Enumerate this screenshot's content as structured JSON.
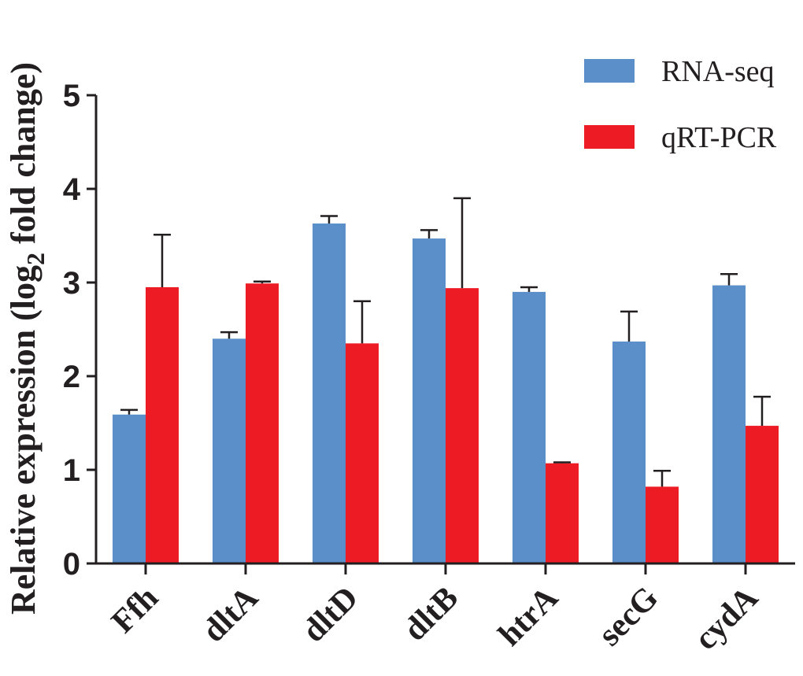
{
  "chart_data": {
    "type": "bar",
    "title": "",
    "xlabel": "",
    "ylabel": {
      "prefix": "Relative expression (log",
      "subscript": "2",
      "suffix": " fold change)"
    },
    "ylim": [
      0,
      5
    ],
    "yticks": [
      "0",
      "1",
      "2",
      "3",
      "4",
      "5"
    ],
    "categories": [
      "Ffh",
      "dltA",
      "dltD",
      "dltB",
      "htrA",
      "secG",
      "cydA"
    ],
    "series": [
      {
        "name": "RNA-seq",
        "color": "#5b8fc9",
        "values": [
          1.59,
          2.4,
          3.63,
          3.47,
          2.9,
          2.37,
          2.97
        ],
        "errors": [
          0.05,
          0.07,
          0.08,
          0.09,
          0.05,
          0.32,
          0.12
        ]
      },
      {
        "name": "qRT-PCR",
        "color": "#ed1c24",
        "values": [
          2.95,
          2.99,
          2.35,
          2.94,
          1.07,
          0.82,
          1.47
        ],
        "errors": [
          0.56,
          0.02,
          0.45,
          0.96,
          0.01,
          0.17,
          0.31
        ]
      }
    ],
    "legend_position": "top-right"
  }
}
